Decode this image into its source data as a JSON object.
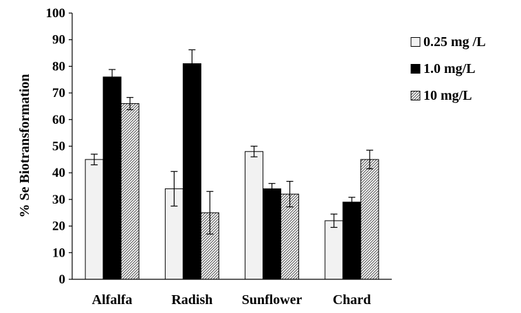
{
  "chart_data": {
    "type": "bar",
    "title": "",
    "xlabel": "",
    "ylabel": "% Se Biotransformation",
    "ylim": [
      0,
      100
    ],
    "yticks": [
      0,
      10,
      20,
      30,
      40,
      50,
      60,
      70,
      80,
      90,
      100
    ],
    "grid": false,
    "legend_position": "right",
    "categories": [
      "Alfalfa",
      "Radish",
      "Sunflower",
      "Chard"
    ],
    "series": [
      {
        "name": "0.25 mg /L",
        "pattern": "light-gray",
        "color": "#f2f2f2",
        "values": [
          45,
          34,
          48,
          22
        ],
        "errors": [
          2,
          6.5,
          2,
          2.5
        ]
      },
      {
        "name": "1.0 mg/L",
        "pattern": "solid-black",
        "color": "#000000",
        "values": [
          76,
          81,
          34,
          29
        ],
        "errors": [
          2.8,
          5.2,
          2,
          1.8
        ]
      },
      {
        "name": "10 mg/L",
        "pattern": "diagonal-hatch",
        "color": "#808080",
        "values": [
          66,
          25,
          32,
          45
        ],
        "errors": [
          2.3,
          8,
          4.8,
          3.5
        ]
      }
    ]
  }
}
